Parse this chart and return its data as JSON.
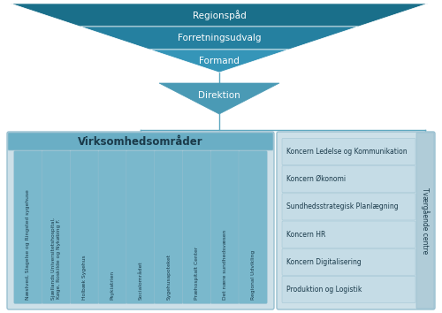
{
  "bg_color": "#ffffff",
  "dark_blue": "#1a6f8a",
  "mid_blue": "#2d88a8",
  "light_blue": "#5fa8c0",
  "col_blue": "#7ab8cc",
  "lighter_blue": "#a8cdd8",
  "lightest_blue": "#cde0e8",
  "item_blue": "#c5dce6",
  "tvaer_strip": "#b0ccd8",
  "line_color": "#5fa8c0",
  "top_labels": [
    "Regionsрåd",
    "Forretningsudvalg",
    "Formand"
  ],
  "direktion_label": "Direktion",
  "virksomhed_label": "Virksomhedsområder",
  "columns": [
    "Næstved, Slagelse og Ringsted sygehuse",
    "Sjællands Universitetshospital,\nKøge, Roskilde og Nykøbing F.",
    "Holbæk Sygehus",
    "Psykiatrien",
    "Socialområdet",
    "Sygehusapoteket",
    "Præhospitalt Center",
    "Det nære sundhedsvæsen",
    "Regional Udvikling"
  ],
  "tvaer_label": "Tværgående centre",
  "tvaer_items": [
    "Koncern Ledelse og Kommunikation",
    "Koncern Økonomi",
    "Sundhedsstrategisk Planlægning",
    "Koncern HR",
    "Koncern Digitalisering",
    "Produktion og Logistik"
  ],
  "band_colors": [
    "#1a6f8a",
    "#2580a0",
    "#3595b8"
  ],
  "dir_color": "#4a9ab5",
  "header_color": "#6aaec5"
}
